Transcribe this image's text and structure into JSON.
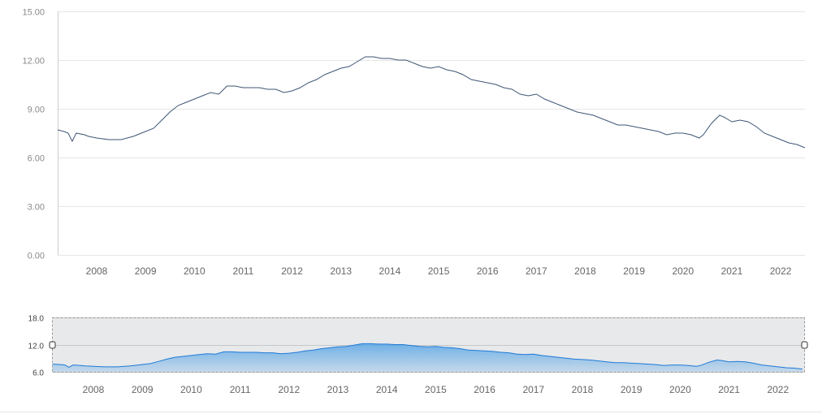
{
  "chart_data": {
    "type": "line",
    "title": "",
    "xlabel": "",
    "ylabel": "",
    "ylim": [
      0,
      15
    ],
    "y_ticks": [
      "0.00",
      "3.00",
      "6.00",
      "9.00",
      "12.00",
      "15.00"
    ],
    "x_ticks": [
      "2008",
      "2009",
      "2010",
      "2011",
      "2012",
      "2013",
      "2014",
      "2015",
      "2016",
      "2017",
      "2018",
      "2019",
      "2020",
      "2021",
      "2022"
    ],
    "grid": true,
    "series": [
      {
        "color": "#3f5675",
        "x": [
          "2007-03",
          "2007-05",
          "2007-06",
          "2007-07",
          "2007-08",
          "2007-10",
          "2007-11",
          "2008-01",
          "2008-04",
          "2008-07",
          "2008-10",
          "2008-12",
          "2009-03",
          "2009-05",
          "2009-07",
          "2009-09",
          "2009-11",
          "2010-01",
          "2010-03",
          "2010-05",
          "2010-07",
          "2010-09",
          "2010-11",
          "2011-01",
          "2011-03",
          "2011-05",
          "2011-07",
          "2011-09",
          "2011-11",
          "2012-01",
          "2012-03",
          "2012-05",
          "2012-07",
          "2012-09",
          "2012-11",
          "2013-01",
          "2013-03",
          "2013-05",
          "2013-07",
          "2013-09",
          "2013-11",
          "2014-01",
          "2014-03",
          "2014-05",
          "2014-07",
          "2014-09",
          "2014-11",
          "2015-01",
          "2015-03",
          "2015-05",
          "2015-07",
          "2015-09",
          "2015-11",
          "2016-01",
          "2016-03",
          "2016-05",
          "2016-07",
          "2016-09",
          "2016-11",
          "2017-01",
          "2017-03",
          "2017-05",
          "2017-07",
          "2017-09",
          "2017-11",
          "2018-01",
          "2018-03",
          "2018-05",
          "2018-07",
          "2018-09",
          "2018-11",
          "2019-01",
          "2019-03",
          "2019-05",
          "2019-07",
          "2019-09",
          "2019-11",
          "2020-01",
          "2020-03",
          "2020-05",
          "2020-06",
          "2020-08",
          "2020-10",
          "2020-11",
          "2021-01",
          "2021-03",
          "2021-05",
          "2021-07",
          "2021-09",
          "2021-11",
          "2022-01",
          "2022-03",
          "2022-05",
          "2022-07"
        ],
        "values": [
          7.7,
          7.6,
          7.5,
          7.0,
          7.5,
          7.4,
          7.3,
          7.2,
          7.1,
          7.1,
          7.3,
          7.5,
          7.8,
          8.3,
          8.8,
          9.2,
          9.4,
          9.6,
          9.8,
          10.0,
          9.9,
          10.4,
          10.4,
          10.3,
          10.3,
          10.3,
          10.2,
          10.2,
          10.0,
          10.1,
          10.3,
          10.6,
          10.8,
          11.1,
          11.3,
          11.5,
          11.6,
          11.9,
          12.2,
          12.2,
          12.1,
          12.1,
          12.0,
          12.0,
          11.8,
          11.6,
          11.5,
          11.6,
          11.4,
          11.3,
          11.1,
          10.8,
          10.7,
          10.6,
          10.5,
          10.3,
          10.2,
          9.9,
          9.8,
          9.9,
          9.6,
          9.4,
          9.2,
          9.0,
          8.8,
          8.7,
          8.6,
          8.4,
          8.2,
          8.0,
          8.0,
          7.9,
          7.8,
          7.7,
          7.6,
          7.4,
          7.5,
          7.5,
          7.4,
          7.2,
          7.4,
          8.1,
          8.6,
          8.5,
          8.2,
          8.3,
          8.2,
          7.9,
          7.5,
          7.3,
          7.1,
          6.9,
          6.8,
          6.6
        ]
      }
    ],
    "navigator": {
      "y_ticks": [
        "6.0",
        "12.0",
        "18.0"
      ],
      "ylim": [
        6,
        18
      ],
      "fill_color": "#5aa6e6",
      "line_color": "#1f7ad6"
    }
  }
}
